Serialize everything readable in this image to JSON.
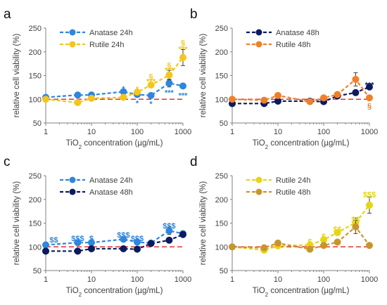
{
  "figure": {
    "common": {
      "xlim": [
        1,
        1000
      ],
      "xscale": "log",
      "xticks": [
        1,
        10,
        100,
        1000
      ],
      "ylim": [
        50,
        250
      ],
      "yticks": [
        50,
        100,
        150,
        200,
        250
      ],
      "reference_line": {
        "y": 100,
        "color": "#e8312f",
        "style": "dashed"
      },
      "grid": false,
      "legend_placement": "top-left"
    }
  },
  "chart_data": [
    {
      "panel_label": "a",
      "type": "line",
      "xlabel": {
        "prefix": "TiO",
        "sub": "2",
        "suffix": " concentration (µg/mL)"
      },
      "ylabel": "relative cell viability (%)",
      "x": [
        1,
        5,
        10,
        50,
        100,
        200,
        500,
        1000
      ],
      "series": [
        {
          "name": "Anatase 24h",
          "color": "#2e86de",
          "values": [
            104,
            109,
            109,
            116,
            110,
            108,
            134,
            128
          ],
          "error": [
            0,
            3,
            2,
            4,
            3,
            3,
            8,
            4
          ]
        },
        {
          "name": "Rutile 24h",
          "color": "#f5c518",
          "values": [
            100,
            93,
            102,
            104,
            115,
            130,
            151,
            188
          ],
          "error": [
            0,
            3,
            3,
            3,
            5,
            5,
            10,
            17
          ]
        }
      ],
      "annotations": [
        {
          "text": "*",
          "x": 50,
          "y": 124,
          "color": "#2e86de"
        },
        {
          "text": "*",
          "x": 100,
          "y": 94,
          "color": "#2e86de"
        },
        {
          "text": "*",
          "x": 200,
          "y": 92,
          "color": "#2e86de"
        },
        {
          "text": "***",
          "x": 500,
          "y": 116,
          "color": "#2e86de"
        },
        {
          "text": "***",
          "x": 1000,
          "y": 110,
          "color": "#2e86de"
        },
        {
          "text": "*",
          "x": 100,
          "y": 123,
          "color": "#f5c518"
        },
        {
          "text": "***",
          "x": 200,
          "y": 140,
          "color": "#f5c518"
        },
        {
          "text": "§",
          "x": 200,
          "y": 150,
          "color": "#f5c518"
        },
        {
          "text": "***",
          "x": 500,
          "y": 163,
          "color": "#f5c518"
        },
        {
          "text": "§",
          "x": 500,
          "y": 174,
          "color": "#f5c518"
        },
        {
          "text": "***",
          "x": 1000,
          "y": 208,
          "color": "#f5c518"
        },
        {
          "text": "§",
          "x": 1000,
          "y": 221,
          "color": "#f5c518"
        }
      ]
    },
    {
      "panel_label": "b",
      "type": "line",
      "xlabel": {
        "prefix": "TiO",
        "sub": "2",
        "suffix": " concentration (µg/mL)"
      },
      "ylabel": "relative cell viability (%)",
      "x": [
        1,
        5,
        10,
        50,
        100,
        200,
        500,
        1000
      ],
      "series": [
        {
          "name": "Anatase 48h",
          "color": "#0d1b5e",
          "values": [
            91,
            91,
            96,
            96,
            95,
            107,
            114,
            126
          ],
          "error": [
            0,
            3,
            3,
            3,
            3,
            3,
            4,
            4
          ]
        },
        {
          "name": "Rutile 48h",
          "color": "#f07f29",
          "values": [
            100,
            98,
            108,
            95,
            103,
            110,
            142,
            103
          ],
          "error": [
            0,
            3,
            4,
            3,
            3,
            4,
            14,
            4
          ]
        }
      ],
      "annotations": [
        {
          "text": "***",
          "x": 1000,
          "y": 132,
          "color": "#0d1b5e"
        },
        {
          "text": "§",
          "x": 1000,
          "y": 88,
          "color": "#f07f29"
        }
      ]
    },
    {
      "panel_label": "c",
      "type": "line",
      "xlabel": {
        "prefix": "TiO",
        "sub": "2",
        "suffix": " concentration (µg/mL)"
      },
      "ylabel": "relative cell viability (%)",
      "x": [
        1,
        5,
        10,
        50,
        100,
        200,
        500,
        1000
      ],
      "series": [
        {
          "name": "Anatase 24h",
          "color": "#2e86de",
          "values": [
            104,
            109,
            109,
            116,
            110,
            108,
            134,
            128
          ],
          "error": [
            0,
            3,
            2,
            4,
            3,
            3,
            8,
            4
          ]
        },
        {
          "name": "Anatase 48h",
          "color": "#0d1b5e",
          "values": [
            91,
            91,
            96,
            96,
            95,
            107,
            114,
            126
          ],
          "error": [
            0,
            3,
            3,
            3,
            3,
            3,
            4,
            4
          ]
        }
      ],
      "annotations": [
        {
          "text": "$$",
          "x": 1.5,
          "y": 117,
          "color": "#2e86de"
        },
        {
          "text": "$$$",
          "x": 5,
          "y": 120,
          "color": "#2e86de"
        },
        {
          "text": "$",
          "x": 10,
          "y": 120,
          "color": "#2e86de"
        },
        {
          "text": "$$$",
          "x": 50,
          "y": 127,
          "color": "#2e86de"
        },
        {
          "text": "$$$",
          "x": 100,
          "y": 120,
          "color": "#2e86de"
        },
        {
          "text": "$$$",
          "x": 500,
          "y": 146,
          "color": "#2e86de"
        }
      ]
    },
    {
      "panel_label": "d",
      "type": "line",
      "xlabel": {
        "prefix": "TiO",
        "sub": "2",
        "suffix": " concentration (µg/mL)"
      },
      "ylabel": "relative cell viability (%)",
      "x": [
        1,
        5,
        10,
        50,
        100,
        200,
        500,
        1000
      ],
      "series": [
        {
          "name": "Rutile 24h",
          "color": "#e6d60f",
          "values": [
            100,
            93,
            102,
            104,
            115,
            130,
            151,
            188
          ],
          "error": [
            0,
            3,
            3,
            3,
            5,
            5,
            10,
            17
          ]
        },
        {
          "name": "Rutile 48h",
          "color": "#c8952b",
          "values": [
            100,
            98,
            108,
            95,
            103,
            110,
            142,
            103
          ],
          "error": [
            0,
            3,
            4,
            3,
            3,
            4,
            14,
            4
          ]
        }
      ],
      "annotations": [
        {
          "text": "$",
          "x": 50,
          "y": 113,
          "color": "#e6d60f"
        },
        {
          "text": "$",
          "x": 100,
          "y": 124,
          "color": "#e6d60f"
        },
        {
          "text": "$$",
          "x": 200,
          "y": 139,
          "color": "#e6d60f"
        },
        {
          "text": "$$",
          "x": 500,
          "y": 160,
          "color": "#e6d60f"
        },
        {
          "text": "$$$",
          "x": 1000,
          "y": 212,
          "color": "#e6d60f"
        }
      ]
    }
  ]
}
